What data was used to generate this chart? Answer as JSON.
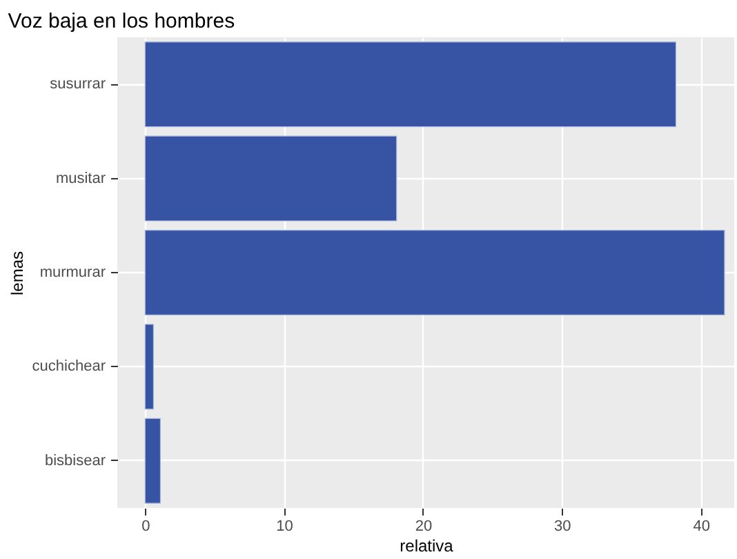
{
  "chart_data": {
    "type": "bar",
    "orientation": "horizontal",
    "title": "Voz baja en los hombres",
    "xlabel": "relativa",
    "ylabel": "lemas",
    "categories": [
      "susurrar",
      "musitar",
      "murmurar",
      "cuchichear",
      "bisbisear"
    ],
    "values": [
      38.2,
      18.1,
      41.7,
      0.6,
      1.1
    ],
    "color": "#3753a4",
    "xlim": [
      -2.0,
      42.4
    ],
    "xticks": [
      0,
      10,
      20,
      30,
      40
    ],
    "grid": true
  }
}
